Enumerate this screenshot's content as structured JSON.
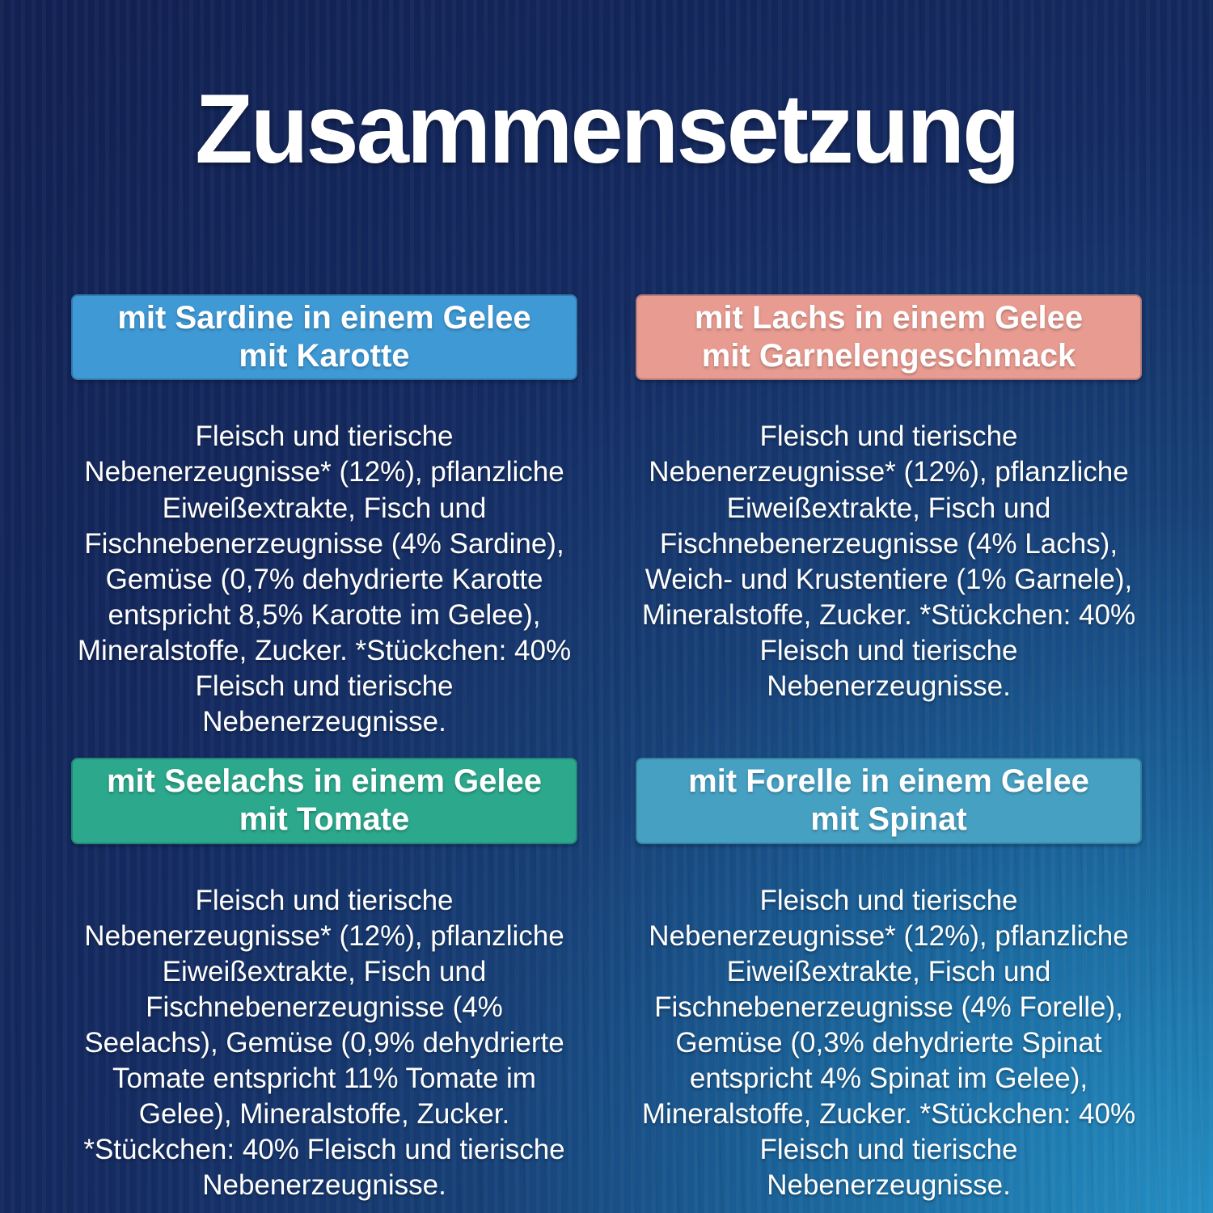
{
  "page": {
    "title": "Zusammensetzung"
  },
  "colors": {
    "background_dark_navy": "#13235a",
    "background_light_blue": "#2490c4",
    "text": "#ffffff",
    "sardine_header": "#3f99d4",
    "lachs_header": "#e89b90",
    "seelachs_header": "#2ca88c",
    "forelle_header": "#46a0c2"
  },
  "cards": [
    {
      "id": "sardine-karotte",
      "header": "mit Sardine in einem Gelee\nmit Karotte",
      "header_color": "#3f99d4",
      "body": "Fleisch und tierische\nNebenerzeugnisse* (12%), pflanzliche\nEiweißextrakte, Fisch und\nFischnebenerzeugnisse (4% Sardine),\nGemüse (0,7% dehydrierte Karotte\nentspricht 8,5% Karotte im Gelee),\nMineralstoffe, Zucker. *Stückchen: 40%\nFleisch und tierische\nNebenerzeugnisse."
    },
    {
      "id": "lachs-garnele",
      "header": "mit Lachs in einem Gelee\nmit Garnelengeschmack",
      "header_color": "#e89b90",
      "body": "Fleisch und tierische\nNebenerzeugnisse* (12%), pflanzliche\nEiweißextrakte, Fisch und\nFischnebenerzeugnisse (4% Lachs),\nWeich- und Krustentiere (1% Garnele),\nMineralstoffe, Zucker. *Stückchen: 40%\nFleisch und tierische\nNebenerzeugnisse."
    },
    {
      "id": "seelachs-tomate",
      "header": "mit Seelachs in einem Gelee\nmit Tomate",
      "header_color": "#2ca88c",
      "body": "Fleisch und tierische\nNebenerzeugnisse* (12%), pflanzliche\nEiweißextrakte, Fisch und\nFischnebenerzeugnisse (4%\nSeelachs), Gemüse (0,9% dehydrierte\nTomate entspricht 11% Tomate im\nGelee), Mineralstoffe, Zucker.\n*Stückchen: 40% Fleisch und tierische\nNebenerzeugnisse."
    },
    {
      "id": "forelle-spinat",
      "header": "mit Forelle in einem Gelee\nmit Spinat",
      "header_color": "#46a0c2",
      "body": "Fleisch und tierische\nNebenerzeugnisse* (12%), pflanzliche\nEiweißextrakte, Fisch und\nFischnebenerzeugnisse (4% Forelle),\nGemüse (0,3% dehydrierte Spinat\nentspricht 4% Spinat im Gelee),\nMineralstoffe, Zucker. *Stückchen: 40%\nFleisch und tierische\nNebenerzeugnisse."
    }
  ]
}
